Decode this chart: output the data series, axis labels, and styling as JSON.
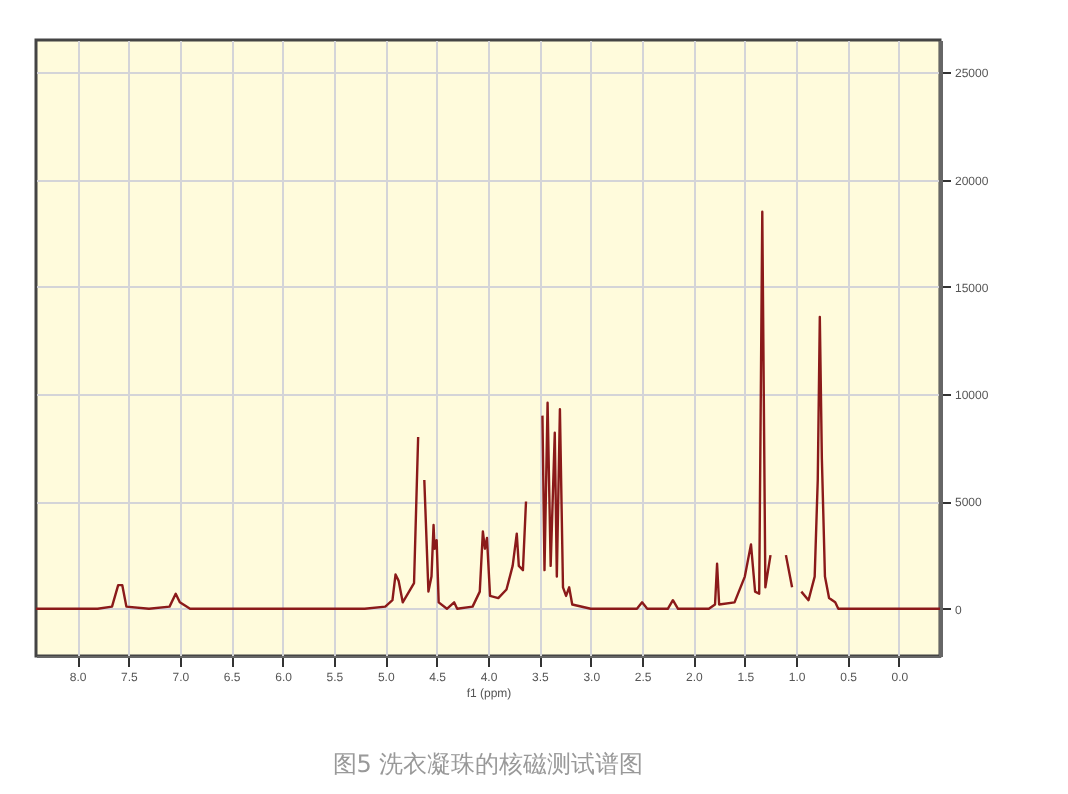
{
  "chart_data": {
    "type": "line",
    "title": "图5 洗衣凝珠的核磁测试谱图",
    "xlabel": "f1 (ppm)",
    "xlim": [
      8.4,
      -0.4
    ],
    "ylim": [
      -2200,
      26500
    ],
    "xticks": [
      {
        "value": 8,
        "label": "8.0"
      },
      {
        "value": 7.5,
        "label": "7.5"
      },
      {
        "value": 7,
        "label": "7.0"
      },
      {
        "value": 6.5,
        "label": "6.5"
      },
      {
        "value": 6,
        "label": "6.0"
      },
      {
        "value": 5.5,
        "label": "5.5"
      },
      {
        "value": 5,
        "label": "5.0"
      },
      {
        "value": 4.5,
        "label": "4.5"
      },
      {
        "value": 4,
        "label": "4.0"
      },
      {
        "value": 3.5,
        "label": "3.5"
      },
      {
        "value": 3,
        "label": "3.0"
      },
      {
        "value": 2.5,
        "label": "2.5"
      },
      {
        "value": 2,
        "label": "2.0"
      },
      {
        "value": 1.5,
        "label": "1.5"
      },
      {
        "value": 1,
        "label": "1.0"
      },
      {
        "value": 0.5,
        "label": "0.5"
      },
      {
        "value": 0,
        "label": "0.0"
      }
    ],
    "yticks": [
      0,
      5000,
      10000,
      15000,
      20000,
      25000
    ],
    "grid": true,
    "tick_labels": "xy",
    "series": [
      {
        "color": "#8b1a1a",
        "x": [
          8.4,
          7.8,
          7.66,
          7.6,
          7.56,
          7.52,
          7.3,
          7.1,
          7.04,
          7.0,
          6.9,
          5.2,
          5.0,
          4.93,
          4.9,
          4.87,
          4.83,
          4.72,
          4.68,
          4.66,
          4.64,
          4.62,
          4.58,
          4.55,
          4.53,
          4.52,
          4.5,
          4.48,
          4.4,
          4.33,
          4.3,
          4.15,
          4.08,
          4.05,
          4.03,
          4.01,
          3.98,
          3.9,
          3.82,
          3.76,
          3.72,
          3.7,
          3.66,
          3.63,
          3.59,
          3.5,
          3.47,
          3.45,
          3.42,
          3.39,
          3.35,
          3.33,
          3.3,
          3.27,
          3.24,
          3.21,
          3.18,
          3.0,
          2.55,
          2.5,
          2.45,
          2.25,
          2.2,
          2.15,
          1.85,
          1.79,
          1.77,
          1.75,
          1.6,
          1.5,
          1.44,
          1.4,
          1.36,
          1.33,
          1.3,
          1.25,
          1.2,
          1.16,
          1.1,
          1.04,
          1.0,
          0.99,
          0.95,
          0.88,
          0.82,
          0.79,
          0.77,
          0.75,
          0.72,
          0.68,
          0.62,
          0.59,
          0.3,
          -0.4
        ],
        "values": [
          0,
          0,
          100,
          1100,
          1100,
          100,
          0,
          100,
          700,
          300,
          0,
          0,
          100,
          400,
          1600,
          1300,
          300,
          1200,
          8000,
          null,
          null,
          6000,
          800,
          1500,
          3900,
          2800,
          3200,
          300,
          0,
          300,
          0,
          100,
          800,
          3600,
          2800,
          3300,
          600,
          500,
          900,
          2000,
          3500,
          2000,
          1800,
          5000,
          null,
          null,
          9000,
          1800,
          9600,
          2000,
          8200,
          1500,
          9300,
          1000,
          600,
          1000,
          200,
          0,
          0,
          300,
          0,
          0,
          400,
          0,
          0,
          200,
          2100,
          200,
          300,
          1500,
          3000,
          800,
          700,
          18500,
          1000,
          2500,
          null,
          null,
          2500,
          1000,
          null,
          null,
          800,
          400,
          1500,
          6000,
          13600,
          7000,
          1500,
          500,
          300,
          0,
          0,
          0
        ]
      }
    ]
  }
}
